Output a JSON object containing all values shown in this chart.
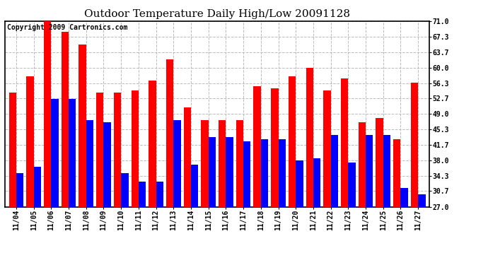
{
  "title": "Outdoor Temperature Daily High/Low 20091128",
  "copyright": "Copyright 2009 Cartronics.com",
  "dates": [
    "11/04",
    "11/05",
    "11/06",
    "11/07",
    "11/08",
    "11/09",
    "11/10",
    "11/11",
    "11/12",
    "11/13",
    "11/14",
    "11/15",
    "11/16",
    "11/17",
    "11/18",
    "11/19",
    "11/20",
    "11/21",
    "11/22",
    "11/23",
    "11/24",
    "11/25",
    "11/26",
    "11/27"
  ],
  "highs": [
    54.0,
    58.0,
    71.0,
    68.5,
    65.5,
    54.0,
    54.0,
    54.5,
    57.0,
    62.0,
    50.5,
    47.5,
    47.5,
    47.5,
    55.5,
    55.0,
    58.0,
    60.0,
    54.5,
    57.5,
    47.0,
    48.0,
    43.0,
    56.5
  ],
  "lows": [
    35.0,
    36.5,
    52.5,
    52.5,
    47.5,
    47.0,
    35.0,
    33.0,
    33.0,
    47.5,
    37.0,
    43.5,
    43.5,
    42.5,
    43.0,
    43.0,
    38.0,
    38.5,
    44.0,
    37.5,
    44.0,
    44.0,
    31.5,
    30.0
  ],
  "high_color": "#ff0000",
  "low_color": "#0000ff",
  "bg_color": "#ffffff",
  "grid_color": "#bbbbbb",
  "ylim": [
    27.0,
    71.0
  ],
  "yticks": [
    27.0,
    30.7,
    34.3,
    38.0,
    41.7,
    45.3,
    49.0,
    52.7,
    56.3,
    60.0,
    63.7,
    67.3,
    71.0
  ],
  "title_fontsize": 11,
  "tick_fontsize": 7,
  "copyright_fontsize": 7
}
